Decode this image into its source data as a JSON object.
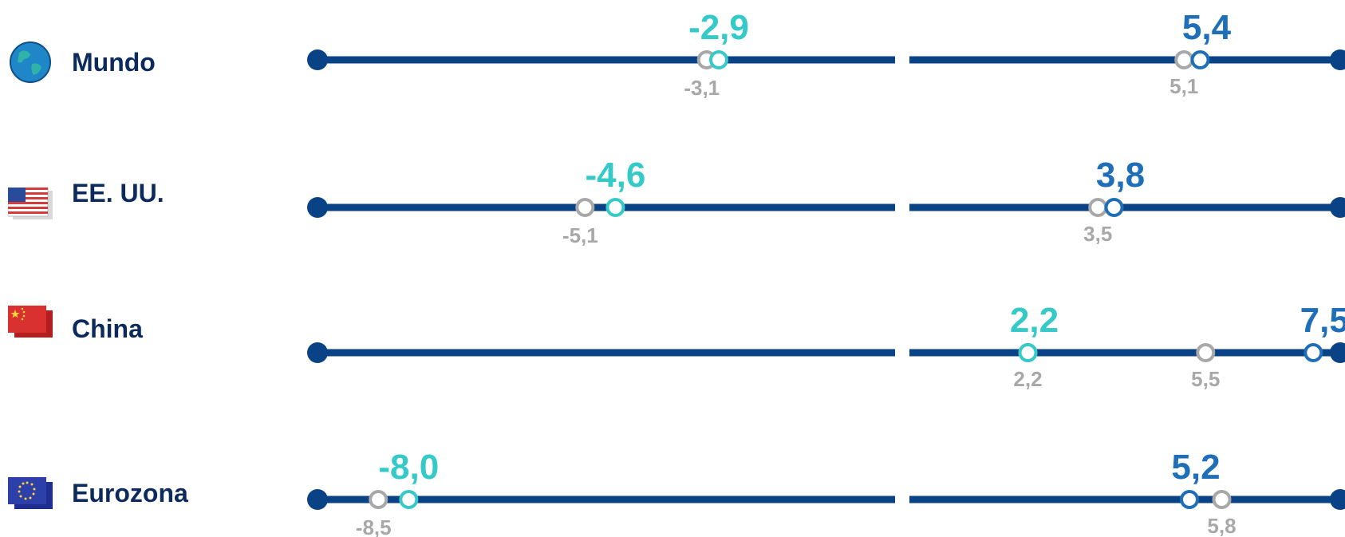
{
  "colors": {
    "track": "#0a4286",
    "value_2020": "#35c9c8",
    "value_2021": "#1f6fb8",
    "previous": "#a8a8a8"
  },
  "chart_data": {
    "type": "dot-range",
    "title": "",
    "x_segments": [
      {
        "name": "",
        "domain": [
          -9.5,
          0
        ]
      },
      {
        "name": "",
        "domain": [
          0,
          8
        ]
      }
    ],
    "rows": [
      {
        "label": "Mundo",
        "icon": "globe-icon",
        "left": {
          "current": -2.9,
          "current_label": "-2,9",
          "previous": -3.1,
          "previous_label": "-3,1"
        },
        "right": {
          "current": 5.4,
          "current_label": "5,4",
          "previous": 5.1,
          "previous_label": "5,1"
        }
      },
      {
        "label": "EE. UU.",
        "icon": "usa-flag-icon",
        "left": {
          "current": -4.6,
          "current_label": "-4,6",
          "previous": -5.1,
          "previous_label": "-5,1"
        },
        "right": {
          "current": 3.8,
          "current_label": "3,8",
          "previous": 3.5,
          "previous_label": "3,5"
        }
      },
      {
        "label": "China",
        "icon": "china-flag-icon",
        "left": null,
        "right": {
          "current": 2.2,
          "current_label": "2,2",
          "previous": 2.2,
          "previous_label": "2,2",
          "current2": 7.5,
          "current2_label": "7,5",
          "previous2": 5.5,
          "previous2_label": "5,5"
        }
      },
      {
        "label": "Eurozona",
        "icon": "eu-flag-icon",
        "left": {
          "current": -8.0,
          "current_label": "-8,0",
          "previous": -8.5,
          "previous_label": "-8,5"
        },
        "right": {
          "current": 5.2,
          "current_label": "5,2",
          "previous": 5.8,
          "previous_label": "5,8"
        }
      }
    ]
  }
}
